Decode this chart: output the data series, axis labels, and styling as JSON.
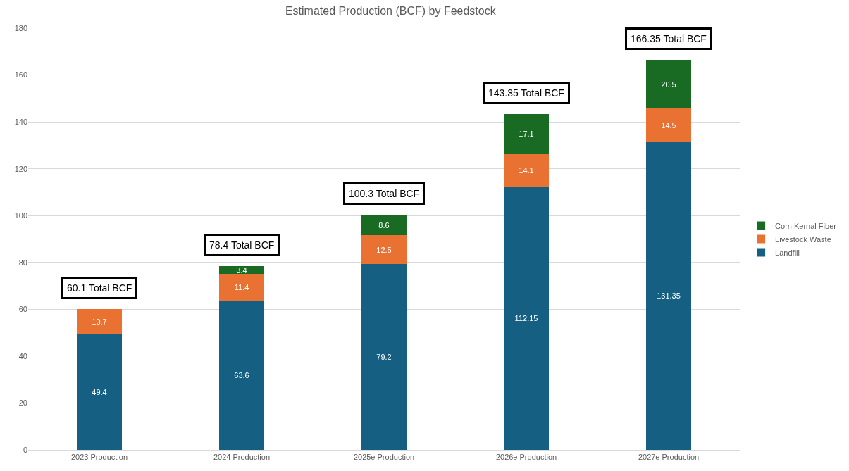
{
  "chart_data": {
    "type": "bar",
    "title": "Estimated Production (BCF) by Feedstock",
    "categories": [
      "2023 Production",
      "2024 Production",
      "2025e Production",
      "2026e Production",
      "2027e Production"
    ],
    "series": [
      {
        "name": "Landfill",
        "color": "#156082",
        "values": [
          49.4,
          63.6,
          79.2,
          112.15,
          131.35
        ]
      },
      {
        "name": "Livestock Waste",
        "color": "#e97132",
        "values": [
          10.7,
          11.4,
          12.5,
          14.1,
          14.5
        ]
      },
      {
        "name": "Corn Kernal Fiber",
        "color": "#196b24",
        "values": [
          null,
          3.4,
          8.6,
          17.1,
          20.5
        ]
      }
    ],
    "stacked": true,
    "data_labels": true,
    "totals": [
      "60.1 Total BCF",
      "78.4 Total BCF",
      "100.3 Total BCF",
      "143.35 Total BCF",
      "166.35 Total BCF"
    ],
    "ylim": [
      0,
      180
    ],
    "yticks": [
      0,
      20,
      40,
      60,
      80,
      100,
      120,
      140,
      160,
      180
    ],
    "grid": "y",
    "legend": "right"
  }
}
